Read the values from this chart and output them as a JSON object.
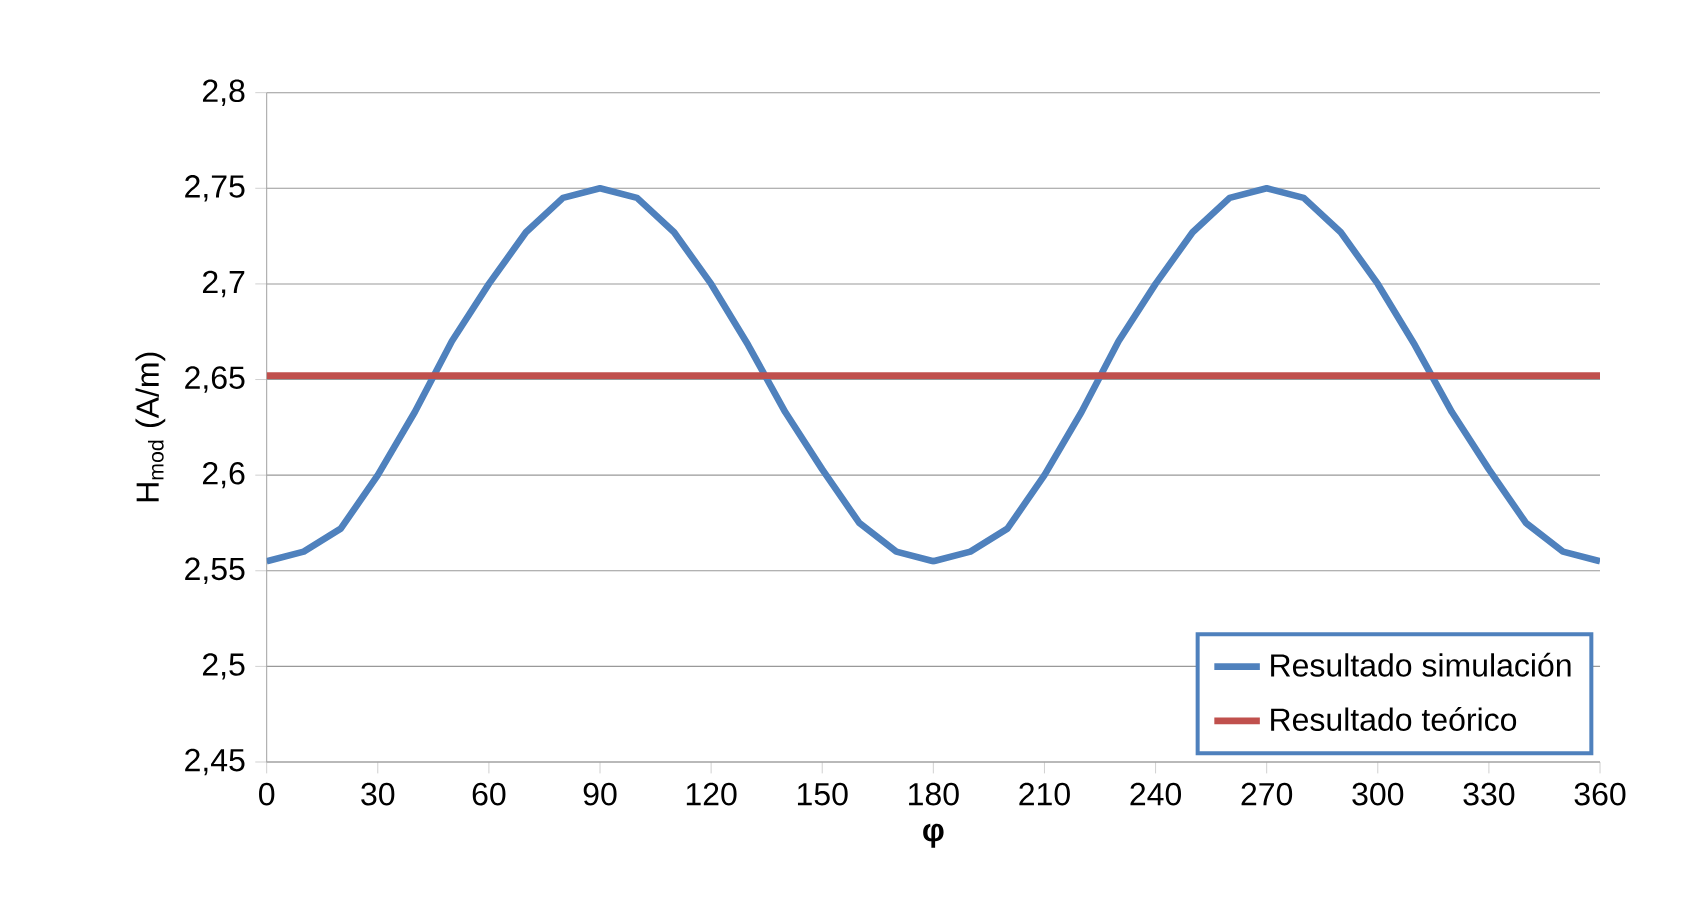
{
  "chart_data": {
    "type": "line",
    "xlabel": "**φ**",
    "ylabel": "H$_{mod}$ (A/m)",
    "xlim": [
      0,
      360
    ],
    "ylim": [
      2.45,
      2.8
    ],
    "xticks": [
      0,
      30,
      60,
      90,
      120,
      150,
      180,
      210,
      240,
      270,
      300,
      330,
      360
    ],
    "yticks": [
      {
        "value": 2.45,
        "label": "2,45"
      },
      {
        "value": 2.5,
        "label": "2,5"
      },
      {
        "value": 2.55,
        "label": "2,55"
      },
      {
        "value": 2.6,
        "label": "2,6"
      },
      {
        "value": 2.65,
        "label": "2,65"
      },
      {
        "value": 2.7,
        "label": "2,7"
      },
      {
        "value": 2.75,
        "label": "2,75"
      },
      {
        "value": 2.8,
        "label": "2,8"
      }
    ],
    "grid": "y",
    "legend": "bottom right",
    "marker": "none",
    "line_style": "solid",
    "series": [
      {
        "name": "Resultado simulación",
        "color": "#4f81bd",
        "x": [
          0,
          10,
          20,
          30,
          40,
          50,
          60,
          70,
          80,
          90,
          100,
          110,
          120,
          130,
          140,
          150,
          160,
          170,
          180,
          190,
          200,
          210,
          220,
          230,
          240,
          250,
          260,
          270,
          280,
          290,
          300,
          310,
          320,
          330,
          340,
          350,
          360
        ],
        "values": [
          2.555,
          2.56,
          2.572,
          2.6,
          2.633,
          2.67,
          2.7,
          2.727,
          2.745,
          2.75,
          2.745,
          2.727,
          2.7,
          2.668,
          2.633,
          2.603,
          2.575,
          2.56,
          2.555,
          2.56,
          2.572,
          2.6,
          2.633,
          2.67,
          2.7,
          2.727,
          2.745,
          2.75,
          2.745,
          2.727,
          2.7,
          2.668,
          2.633,
          2.603,
          2.575,
          2.56,
          2.555
        ]
      },
      {
        "name": "Resultado teórico",
        "color": "#c0504d",
        "x": [
          0,
          360
        ],
        "values": [
          2.652,
          2.652
        ]
      }
    ]
  }
}
